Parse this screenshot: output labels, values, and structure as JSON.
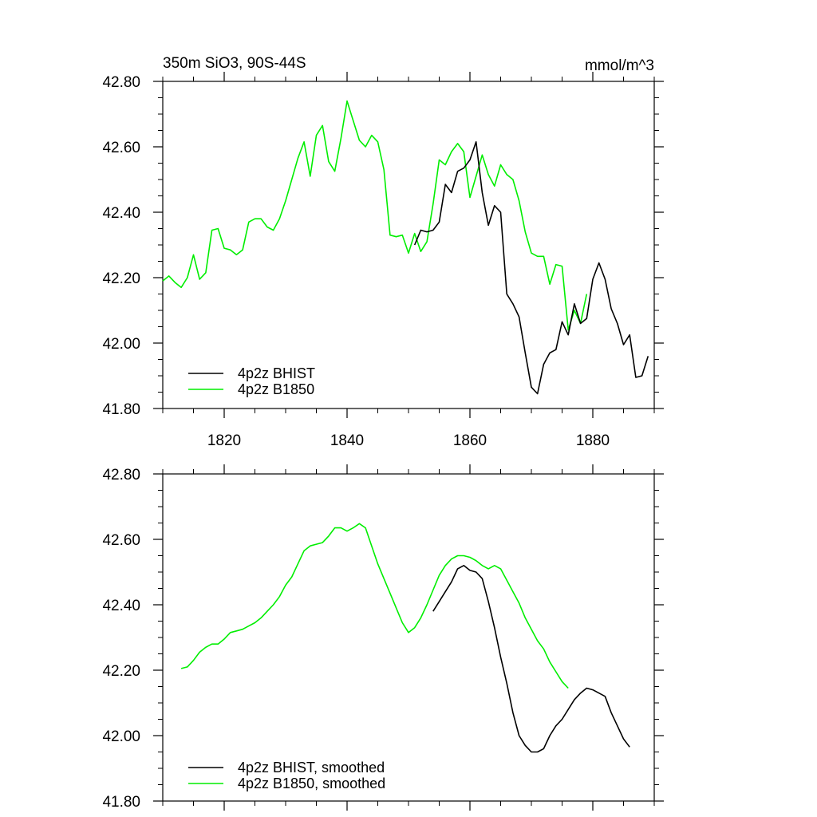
{
  "chart_data": [
    {
      "type": "line",
      "title_left": "350m SiO3, 90S-44S",
      "title_right": "mmol/m^3",
      "xlim": [
        1810,
        1890
      ],
      "ylim": [
        41.8,
        42.8
      ],
      "xticks": [
        1820,
        1840,
        1860,
        1880
      ],
      "xtick_labels": [
        "1820",
        "1840",
        "1860",
        "1880"
      ],
      "yticks": [
        41.8,
        42.0,
        42.2,
        42.4,
        42.6,
        42.8
      ],
      "ytick_labels": [
        "41.80",
        "42.00",
        "42.20",
        "42.40",
        "42.60",
        "42.80"
      ],
      "legend_position": "bottom-left",
      "series": [
        {
          "name": "4p2z BHIST",
          "color": "#000000",
          "x": [
            1851,
            1852,
            1853,
            1854,
            1855,
            1856,
            1857,
            1858,
            1859,
            1860,
            1861,
            1862,
            1863,
            1864,
            1865,
            1866,
            1867,
            1868,
            1869,
            1870,
            1871,
            1872,
            1873,
            1874,
            1875,
            1876,
            1877,
            1878,
            1879,
            1880,
            1881,
            1882,
            1883,
            1884,
            1885,
            1886,
            1887,
            1888,
            1889
          ],
          "y": [
            42.3,
            42.345,
            42.34,
            42.345,
            42.37,
            42.485,
            42.46,
            42.525,
            42.535,
            42.56,
            42.615,
            42.46,
            42.36,
            42.42,
            42.4,
            42.15,
            42.12,
            42.08,
            41.97,
            41.865,
            41.845,
            41.935,
            41.97,
            41.98,
            42.065,
            42.025,
            42.12,
            42.06,
            42.075,
            42.195,
            42.245,
            42.195,
            42.105,
            42.06,
            41.995,
            42.025,
            41.895,
            41.9,
            41.96
          ]
        },
        {
          "name": "4p2z B1850",
          "color": "#00ee00",
          "x": [
            1810,
            1811,
            1812,
            1813,
            1814,
            1815,
            1816,
            1817,
            1818,
            1819,
            1820,
            1821,
            1822,
            1823,
            1824,
            1825,
            1826,
            1827,
            1828,
            1829,
            1830,
            1831,
            1832,
            1833,
            1834,
            1835,
            1836,
            1837,
            1838,
            1839,
            1840,
            1841,
            1842,
            1843,
            1844,
            1845,
            1846,
            1847,
            1848,
            1849,
            1850,
            1851,
            1852,
            1853,
            1854,
            1855,
            1856,
            1857,
            1858,
            1859,
            1860,
            1861,
            1862,
            1863,
            1864,
            1865,
            1866,
            1867,
            1868,
            1869,
            1870,
            1871,
            1872,
            1873,
            1874,
            1875,
            1876,
            1877,
            1878,
            1879
          ],
          "y": [
            42.19,
            42.205,
            42.185,
            42.17,
            42.2,
            42.27,
            42.195,
            42.215,
            42.345,
            42.35,
            42.29,
            42.285,
            42.27,
            42.285,
            42.37,
            42.38,
            42.38,
            42.355,
            42.345,
            42.38,
            42.435,
            42.5,
            42.565,
            42.615,
            42.51,
            42.635,
            42.665,
            42.555,
            42.525,
            42.625,
            42.74,
            42.68,
            42.62,
            42.6,
            42.635,
            42.615,
            42.53,
            42.33,
            42.325,
            42.33,
            42.275,
            42.335,
            42.28,
            42.31,
            42.425,
            42.56,
            42.545,
            42.585,
            42.61,
            42.585,
            42.445,
            42.51,
            42.575,
            42.515,
            42.48,
            42.545,
            42.515,
            42.5,
            42.435,
            42.34,
            42.275,
            42.265,
            42.265,
            42.18,
            42.24,
            42.235,
            42.04,
            42.1,
            42.06,
            42.15
          ]
        }
      ]
    },
    {
      "type": "line",
      "xlim": [
        1810,
        1890
      ],
      "ylim": [
        41.8,
        42.8
      ],
      "xticks": [
        1820,
        1840,
        1860,
        1880
      ],
      "yticks": [
        41.8,
        42.0,
        42.2,
        42.4,
        42.6,
        42.8
      ],
      "ytick_labels": [
        "41.80",
        "42.00",
        "42.20",
        "42.40",
        "42.60",
        "42.80"
      ],
      "legend_position": "bottom-left",
      "series": [
        {
          "name": "4p2z BHIST, smoothed",
          "color": "#000000",
          "x": [
            1854,
            1855,
            1856,
            1857,
            1858,
            1859,
            1860,
            1861,
            1862,
            1863,
            1864,
            1865,
            1866,
            1867,
            1868,
            1869,
            1870,
            1871,
            1872,
            1873,
            1874,
            1875,
            1876,
            1877,
            1878,
            1879,
            1880,
            1881,
            1882,
            1883,
            1884,
            1885,
            1886
          ],
          "y": [
            42.38,
            42.41,
            42.44,
            42.47,
            42.51,
            42.52,
            42.505,
            42.5,
            42.48,
            42.41,
            42.33,
            42.24,
            42.16,
            42.07,
            42.0,
            41.97,
            41.95,
            41.95,
            41.96,
            42.0,
            42.03,
            42.05,
            42.08,
            42.11,
            42.13,
            42.145,
            42.14,
            42.13,
            42.12,
            42.07,
            42.03,
            41.99,
            41.965
          ]
        },
        {
          "name": "4p2z B1850, smoothed",
          "color": "#00ee00",
          "x": [
            1813,
            1814,
            1815,
            1816,
            1817,
            1818,
            1819,
            1820,
            1821,
            1822,
            1823,
            1824,
            1825,
            1826,
            1827,
            1828,
            1829,
            1830,
            1831,
            1832,
            1833,
            1834,
            1835,
            1836,
            1837,
            1838,
            1839,
            1840,
            1841,
            1842,
            1843,
            1844,
            1845,
            1846,
            1847,
            1848,
            1849,
            1850,
            1851,
            1852,
            1853,
            1854,
            1855,
            1856,
            1857,
            1858,
            1859,
            1860,
            1861,
            1862,
            1863,
            1864,
            1865,
            1866,
            1867,
            1868,
            1869,
            1870,
            1871,
            1872,
            1873,
            1874,
            1875,
            1876
          ],
          "y": [
            42.205,
            42.21,
            42.23,
            42.255,
            42.27,
            42.28,
            42.28,
            42.295,
            42.315,
            42.32,
            42.325,
            42.335,
            42.345,
            42.36,
            42.38,
            42.4,
            42.425,
            42.46,
            42.485,
            42.525,
            42.565,
            42.58,
            42.585,
            42.59,
            42.61,
            42.635,
            42.635,
            42.625,
            42.635,
            42.648,
            42.635,
            42.58,
            42.525,
            42.48,
            42.435,
            42.39,
            42.345,
            42.315,
            42.33,
            42.36,
            42.4,
            42.445,
            42.49,
            42.52,
            42.54,
            42.55,
            42.55,
            42.545,
            42.535,
            42.52,
            42.51,
            42.52,
            42.51,
            42.475,
            42.44,
            42.405,
            42.36,
            42.325,
            42.29,
            42.265,
            42.225,
            42.195,
            42.165,
            42.145
          ]
        }
      ]
    }
  ]
}
